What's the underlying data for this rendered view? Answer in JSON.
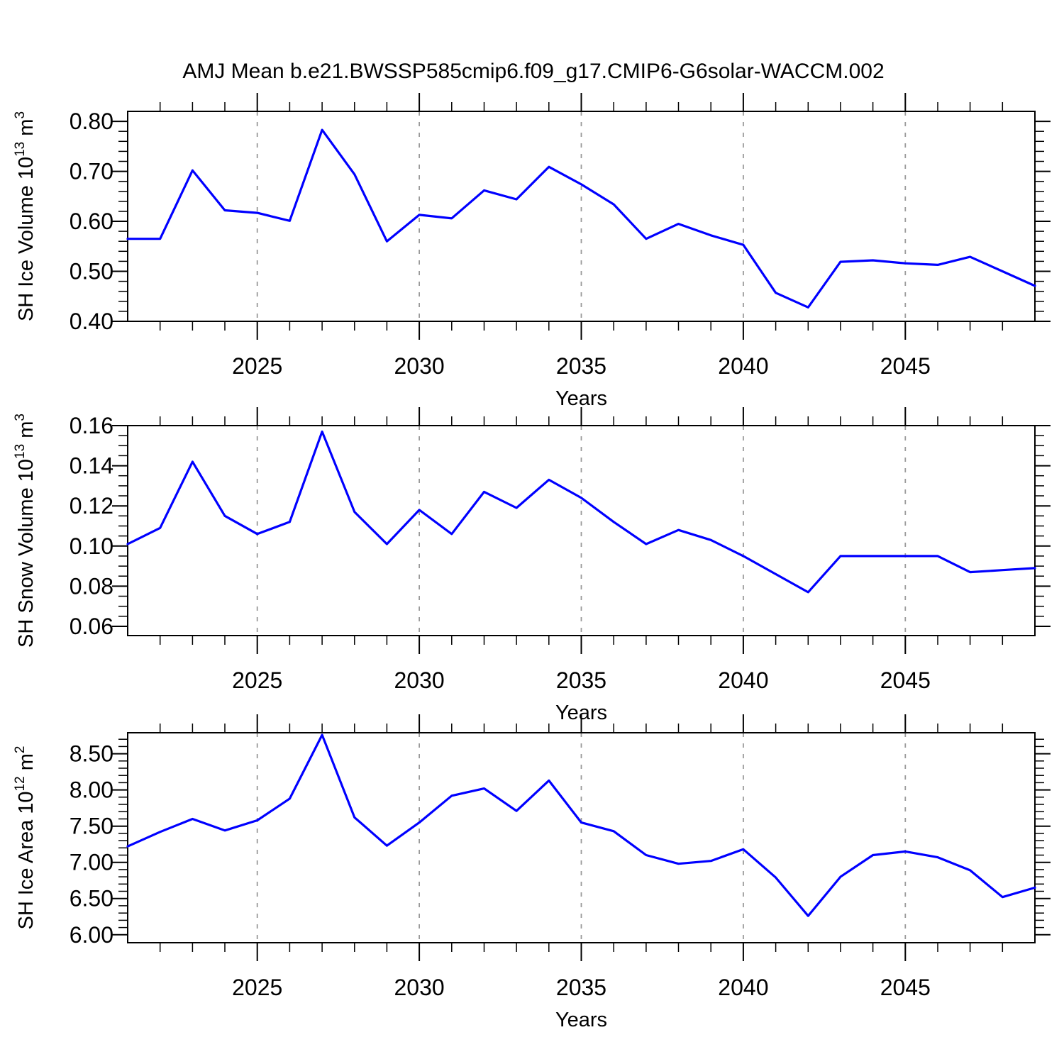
{
  "title": "AMJ Mean b.e21.BWSSP585cmip6.f09_g17.CMIP6-G6solar-WACCM.002",
  "colors": {
    "line": "#0000ff",
    "grid": "#999999",
    "frame": "#000000"
  },
  "chart_data": [
    {
      "type": "line",
      "name": "sh-ice-volume",
      "ylabel": "SH Ice Volume 10^13 m^3",
      "ylabel_rich": [
        {
          "t": "SH Ice Volume 10"
        },
        {
          "sup": "13"
        },
        {
          "t": " m"
        },
        {
          "sup": "3"
        }
      ],
      "xlabel": "Years",
      "legend": "none",
      "grid": "vertical-dashed",
      "x": [
        2021,
        2022,
        2023,
        2024,
        2025,
        2026,
        2027,
        2028,
        2029,
        2030,
        2031,
        2032,
        2033,
        2034,
        2035,
        2036,
        2037,
        2038,
        2039,
        2040,
        2041,
        2042,
        2043,
        2044,
        2045,
        2046,
        2047,
        2048,
        2049
      ],
      "values": [
        0.565,
        0.565,
        0.702,
        0.622,
        0.617,
        0.601,
        0.783,
        0.694,
        0.56,
        0.613,
        0.606,
        0.662,
        0.644,
        0.709,
        0.674,
        0.634,
        0.565,
        0.595,
        0.572,
        0.553,
        0.457,
        0.428,
        0.519,
        0.522,
        0.516,
        0.513,
        0.529,
        0.5,
        0.471
      ],
      "xlim": [
        2021,
        2049
      ],
      "ylim": [
        0.4,
        0.82
      ],
      "yticks": [
        0.4,
        0.5,
        0.6,
        0.7,
        0.8
      ],
      "ytick_labels": [
        "0.40",
        "0.50",
        "0.60",
        "0.70",
        "0.80"
      ],
      "y_minor_step": 0.02,
      "xticks": [
        2025,
        2030,
        2035,
        2040,
        2045
      ],
      "xtick_labels": [
        "2025",
        "2030",
        "2035",
        "2040",
        "2045"
      ],
      "x_minor_step": 1
    },
    {
      "type": "line",
      "name": "sh-snow-volume",
      "ylabel": "SH Snow Volume 10^13 m^3",
      "ylabel_rich": [
        {
          "t": "SH Snow Volume 10"
        },
        {
          "sup": "13"
        },
        {
          "t": " m"
        },
        {
          "sup": "3"
        }
      ],
      "xlabel": "Years",
      "legend": "none",
      "grid": "vertical-dashed",
      "x": [
        2021,
        2022,
        2023,
        2024,
        2025,
        2026,
        2027,
        2028,
        2029,
        2030,
        2031,
        2032,
        2033,
        2034,
        2035,
        2036,
        2037,
        2038,
        2039,
        2040,
        2041,
        2042,
        2043,
        2044,
        2045,
        2046,
        2047,
        2048,
        2049
      ],
      "values": [
        0.101,
        0.109,
        0.142,
        0.115,
        0.106,
        0.112,
        0.157,
        0.117,
        0.101,
        0.118,
        0.106,
        0.127,
        0.119,
        0.133,
        0.124,
        0.112,
        0.101,
        0.108,
        0.103,
        0.095,
        0.086,
        0.077,
        0.095,
        0.095,
        0.095,
        0.095,
        0.087,
        0.088,
        0.089
      ],
      "xlim": [
        2021,
        2049
      ],
      "ylim": [
        0.0554,
        0.16
      ],
      "yticks": [
        0.06,
        0.08,
        0.1,
        0.12,
        0.14,
        0.16
      ],
      "ytick_labels": [
        "0.06",
        "0.08",
        "0.10",
        "0.12",
        "0.14",
        "0.16"
      ],
      "y_minor_step": 0.005,
      "xticks": [
        2025,
        2030,
        2035,
        2040,
        2045
      ],
      "xtick_labels": [
        "2025",
        "2030",
        "2035",
        "2040",
        "2045"
      ],
      "x_minor_step": 1
    },
    {
      "type": "line",
      "name": "sh-ice-area",
      "ylabel": "SH Ice Area 10^12 m^2",
      "ylabel_rich": [
        {
          "t": "SH Ice Area 10"
        },
        {
          "sup": "12"
        },
        {
          "t": " m"
        },
        {
          "sup": "2"
        }
      ],
      "xlabel": "Years",
      "legend": "none",
      "grid": "vertical-dashed",
      "x": [
        2021,
        2022,
        2023,
        2024,
        2025,
        2026,
        2027,
        2028,
        2029,
        2030,
        2031,
        2032,
        2033,
        2034,
        2035,
        2036,
        2037,
        2038,
        2039,
        2040,
        2041,
        2042,
        2043,
        2044,
        2045,
        2046,
        2047,
        2048,
        2049
      ],
      "values": [
        7.22,
        7.42,
        7.6,
        7.44,
        7.58,
        7.88,
        8.76,
        7.62,
        7.23,
        7.55,
        7.92,
        8.02,
        7.71,
        8.13,
        7.55,
        7.43,
        7.1,
        6.98,
        7.02,
        7.18,
        6.79,
        6.26,
        6.8,
        7.1,
        7.15,
        7.07,
        6.89,
        6.52,
        6.65
      ],
      "xlim": [
        2021,
        2049
      ],
      "ylim": [
        5.89,
        8.79
      ],
      "yticks": [
        6.0,
        6.5,
        7.0,
        7.5,
        8.0,
        8.5
      ],
      "ytick_labels": [
        "6.00",
        "6.50",
        "7.00",
        "7.50",
        "8.00",
        "8.50"
      ],
      "y_minor_step": 0.1,
      "xticks": [
        2025,
        2030,
        2035,
        2040,
        2045
      ],
      "xtick_labels": [
        "2025",
        "2030",
        "2035",
        "2040",
        "2045"
      ],
      "x_minor_step": 1
    }
  ]
}
